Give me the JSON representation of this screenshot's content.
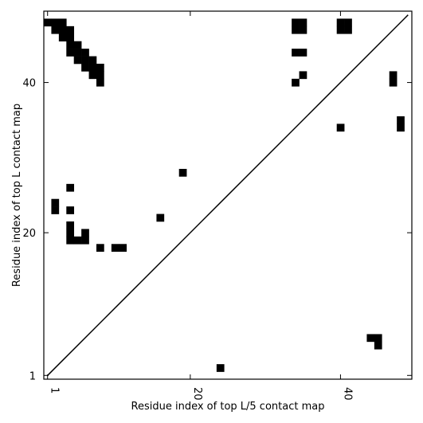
{
  "chart_data": {
    "type": "heatmap",
    "xlabel": "Residue index of top L/5 contact map",
    "ylabel": "Residue index of top L contact map",
    "xlim": [
      0.5,
      49.5
    ],
    "ylim": [
      0.5,
      49.5
    ],
    "x_ticks": [
      1,
      20,
      40
    ],
    "y_ticks": [
      1,
      20,
      40
    ],
    "x_tick_labels": [
      "1",
      "20",
      "40"
    ],
    "y_tick_labels": [
      "1",
      "20",
      "40"
    ],
    "x_tick_label_rotation": -90,
    "cell_color": "#000000",
    "background_color": "#ffffff",
    "diagonal_line": {
      "from": [
        1,
        1
      ],
      "to": [
        49,
        49
      ],
      "color": "#000000"
    },
    "cells": [
      [
        1,
        48
      ],
      [
        2,
        48
      ],
      [
        3,
        48
      ],
      [
        2,
        47
      ],
      [
        3,
        47
      ],
      [
        4,
        47
      ],
      [
        3,
        46
      ],
      [
        4,
        46
      ],
      [
        4,
        45
      ],
      [
        5,
        45
      ],
      [
        4,
        44
      ],
      [
        5,
        44
      ],
      [
        6,
        44
      ],
      [
        5,
        43
      ],
      [
        6,
        43
      ],
      [
        7,
        43
      ],
      [
        6,
        42
      ],
      [
        7,
        42
      ],
      [
        8,
        42
      ],
      [
        7,
        41
      ],
      [
        8,
        41
      ],
      [
        8,
        40
      ],
      [
        34,
        48
      ],
      [
        35,
        48
      ],
      [
        34,
        47
      ],
      [
        35,
        47
      ],
      [
        34,
        44
      ],
      [
        35,
        44
      ],
      [
        35,
        41
      ],
      [
        34,
        40
      ],
      [
        40,
        48
      ],
      [
        41,
        48
      ],
      [
        40,
        47
      ],
      [
        41,
        47
      ],
      [
        47,
        41
      ],
      [
        47,
        40
      ],
      [
        48,
        35
      ],
      [
        48,
        34
      ],
      [
        40,
        34
      ],
      [
        19,
        28
      ],
      [
        4,
        26
      ],
      [
        2,
        24
      ],
      [
        2,
        23
      ],
      [
        4,
        23
      ],
      [
        16,
        22
      ],
      [
        4,
        21
      ],
      [
        4,
        20
      ],
      [
        6,
        20
      ],
      [
        4,
        19
      ],
      [
        5,
        19
      ],
      [
        6,
        19
      ],
      [
        8,
        18
      ],
      [
        10,
        18
      ],
      [
        11,
        18
      ],
      [
        44,
        6
      ],
      [
        45,
        6
      ],
      [
        45,
        5
      ],
      [
        24,
        2
      ]
    ]
  }
}
